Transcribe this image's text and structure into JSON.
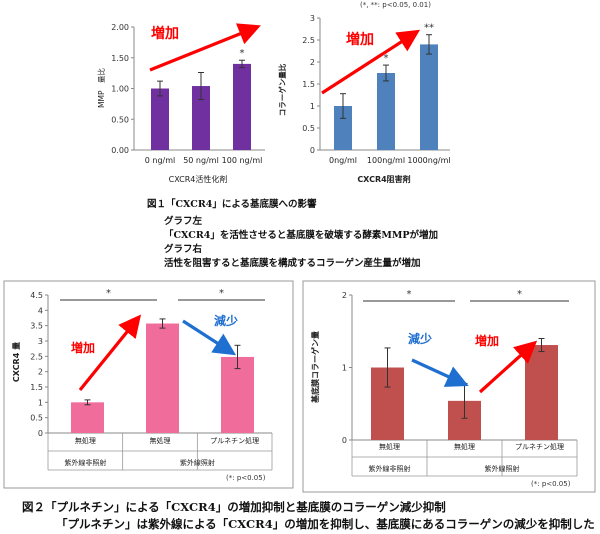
{
  "top_note": "(*, **: p<0.05, 0.01)",
  "colors": {
    "purple": "#7030a0",
    "blue": "#4f81bd",
    "pink": "#f06c9b",
    "darkred": "#c0504d",
    "arrow_red": "#ff0000",
    "arrow_blue": "#1f6fd1"
  },
  "chart_data": [
    {
      "type": "bar",
      "id": "fig1-left",
      "categories": [
        "0 ng/ml",
        "50 ng/ml",
        "100 ng/ml"
      ],
      "values": [
        1.0,
        1.04,
        1.4
      ],
      "errors": [
        0.12,
        0.22,
        0.06
      ],
      "significance": [
        "",
        "",
        "*"
      ],
      "ylabel": "MMP　量比",
      "xlabel": "CXCR4活性化剤",
      "ylim": [
        0,
        2.0
      ],
      "yticks": [
        "0.00",
        "0.50",
        "1.00",
        "1.50",
        "2.00"
      ],
      "ytick_values": [
        0,
        0.5,
        1.0,
        1.5,
        2.0
      ],
      "annotation": "増加",
      "color": "#7030a0"
    },
    {
      "type": "bar",
      "id": "fig1-right",
      "categories": [
        "0ng/ml",
        "100ng/ml",
        "1000ng/ml"
      ],
      "values": [
        1.0,
        1.75,
        2.4
      ],
      "errors": [
        0.28,
        0.18,
        0.22
      ],
      "significance": [
        "",
        "*",
        "**"
      ],
      "ylabel": "コラーゲン量比",
      "xlabel": "CXCR4阻害剤",
      "ylim": [
        0,
        3.0
      ],
      "yticks": [
        "0",
        "0.5",
        "1",
        "1.5",
        "2",
        "2.5",
        "3"
      ],
      "ytick_values": [
        0,
        0.5,
        1,
        1.5,
        2,
        2.5,
        3
      ],
      "annotation": "増加",
      "color": "#4f81bd"
    },
    {
      "type": "bar",
      "id": "fig2-left",
      "categories": [
        "無処理",
        "無処理",
        "プルネチン処理"
      ],
      "groups": [
        "紫外線非照射",
        "紫外線照射"
      ],
      "values": [
        1.0,
        3.57,
        2.48
      ],
      "errors": [
        0.08,
        0.15,
        0.38
      ],
      "significance_brackets": [
        "*",
        "*"
      ],
      "ylabel": "CXCR4 量",
      "ylim": [
        0,
        4.5
      ],
      "yticks": [
        "0",
        "0.5",
        "1",
        "1.5",
        "2",
        "2.5",
        "3",
        "3.5",
        "4",
        "4.5"
      ],
      "ytick_values": [
        0,
        0.5,
        1,
        1.5,
        2,
        2.5,
        3,
        3.5,
        4,
        4.5
      ],
      "annotations": [
        "増加",
        "減少"
      ],
      "note": "(*: p<0.05)",
      "color": "#f06c9b"
    },
    {
      "type": "bar",
      "id": "fig2-right",
      "categories": [
        "無処理",
        "無処理",
        "プルネチン処理"
      ],
      "groups": [
        "紫外線非照射",
        "紫外線照射"
      ],
      "values": [
        1.0,
        0.54,
        1.31
      ],
      "errors": [
        0.27,
        0.24,
        0.09
      ],
      "significance_brackets": [
        "*",
        "*"
      ],
      "ylabel": "基底膜コラーゲン量",
      "ylim": [
        0,
        2
      ],
      "yticks": [
        "0",
        "1",
        "2"
      ],
      "ytick_values": [
        0,
        1,
        2
      ],
      "annotations": [
        "減少",
        "増加"
      ],
      "note": "(*: p<0.05)",
      "color": "#c0504d"
    }
  ],
  "captions": {
    "fig1_title": "図１「CXCR4」による基底膜への影響",
    "fig1_lines": [
      "グラフ左",
      "「CXCR4」を活性させると基底膜を破壊する酵素MMPが増加",
      "グラフ右",
      "活性を阻害すると基底膜を構成するコラーゲン産生量が増加"
    ],
    "fig2_title": "図２「プルネチン」による「CXCR4」の増加抑制と基底膜のコラーゲン減少抑制",
    "fig2_sub": "「プルネチン」は紫外線による「CXCR4」の増加を抑制し、基底膜にあるコラーゲンの減少を抑制した"
  }
}
